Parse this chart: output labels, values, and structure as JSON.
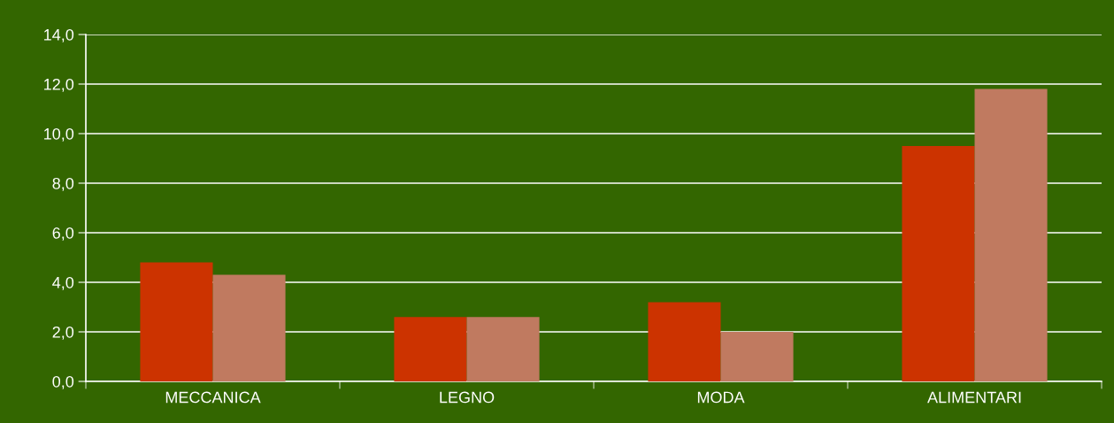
{
  "chart_data": {
    "type": "bar",
    "categories": [
      "MECCANICA",
      "LEGNO",
      "MODA",
      "ALIMENTARI"
    ],
    "series": [
      {
        "color": "#cc3300",
        "values": [
          4.8,
          2.6,
          3.2,
          9.5
        ]
      },
      {
        "color": "#c07a60",
        "values": [
          4.3,
          2.6,
          2.0,
          11.8
        ]
      }
    ],
    "ylim": [
      0,
      14
    ],
    "yticks": [
      {
        "value": 0,
        "label": "0,0"
      },
      {
        "value": 2,
        "label": "2,0"
      },
      {
        "value": 4,
        "label": "4,0"
      },
      {
        "value": 6,
        "label": "6,0"
      },
      {
        "value": 8,
        "label": "8,0"
      },
      {
        "value": 10,
        "label": "10,0"
      },
      {
        "value": 12,
        "label": "12,0"
      },
      {
        "value": 14,
        "label": "14,0"
      }
    ],
    "grid": "y"
  }
}
